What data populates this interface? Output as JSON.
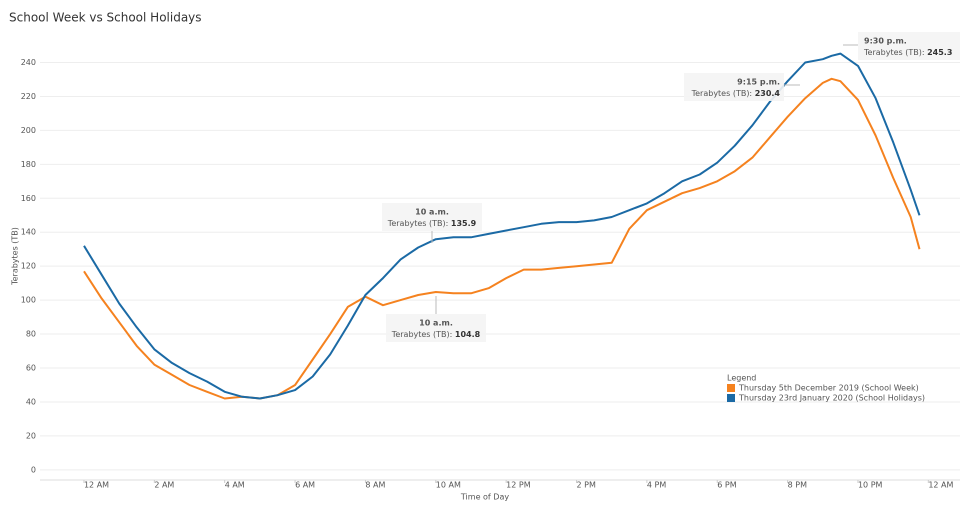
{
  "chart_data": {
    "type": "line",
    "title": "School Week vs School Holidays",
    "x_label": "Time of Day",
    "y_label": "Terabytes (TB)",
    "x": [
      0,
      0.5,
      1,
      1.5,
      2,
      2.5,
      3,
      3.5,
      4,
      4.5,
      5,
      5.5,
      6,
      6.5,
      7,
      7.5,
      8,
      8.5,
      9,
      9.5,
      10,
      10.5,
      11,
      11.5,
      12,
      12.5,
      13,
      13.5,
      14,
      14.5,
      15,
      15.5,
      16,
      16.5,
      17,
      17.5,
      18,
      18.5,
      19,
      19.5,
      20,
      20.5,
      21,
      21.25,
      21.5,
      22,
      22.5,
      23,
      23.5,
      23.75
    ],
    "series": [
      {
        "name": "Thursday 5th December 2019 (School Week)",
        "color": "#f5821f",
        "values": [
          117,
          101,
          87,
          73,
          62,
          56,
          50,
          46,
          42,
          43,
          42,
          44,
          50,
          65,
          80,
          96,
          102,
          97,
          100,
          103,
          104.8,
          104,
          104,
          107,
          113,
          118,
          118,
          119,
          120,
          121,
          122,
          142,
          153,
          158,
          163,
          166,
          170,
          176,
          184,
          196,
          208,
          219,
          228,
          230.4,
          229,
          218,
          197,
          172,
          149,
          130
        ]
      },
      {
        "name": "Thursday 23rd January 2020 (School Holidays)",
        "color": "#1b6aa5",
        "values": [
          132,
          115,
          98,
          84,
          71,
          63,
          57,
          52,
          46,
          43,
          42,
          44,
          47,
          55,
          68,
          85,
          103,
          113,
          124,
          131,
          135.9,
          137,
          137,
          139,
          141,
          143,
          145,
          146,
          146,
          147,
          149,
          153,
          157,
          163,
          170,
          174,
          181,
          191,
          203,
          217,
          229,
          240,
          242,
          244,
          245.3,
          238,
          219,
          193,
          165,
          150
        ]
      }
    ],
    "xlim": [
      -1.25,
      24.9
    ],
    "ylim": [
      -6,
      258
    ],
    "xticks": [
      {
        "value": 0,
        "label": "12 AM"
      },
      {
        "value": 2,
        "label": "2 AM"
      },
      {
        "value": 4,
        "label": "4 AM"
      },
      {
        "value": 6,
        "label": "6 AM"
      },
      {
        "value": 8,
        "label": "8 AM"
      },
      {
        "value": 10,
        "label": "10 AM"
      },
      {
        "value": 12,
        "label": "12 PM"
      },
      {
        "value": 14,
        "label": "2 PM"
      },
      {
        "value": 16,
        "label": "4 PM"
      },
      {
        "value": 18,
        "label": "6 PM"
      },
      {
        "value": 20,
        "label": "8 PM"
      },
      {
        "value": 22,
        "label": "10 PM"
      },
      {
        "value": 24,
        "label": "12 AM"
      }
    ],
    "yticks": [
      0,
      20,
      40,
      60,
      80,
      100,
      120,
      140,
      160,
      180,
      200,
      220,
      240
    ],
    "grid": true,
    "legend_title": "Legend",
    "legend_position": "right",
    "annotations": [
      {
        "time": "10 a.m.",
        "label": "Terabytes (TB):",
        "value": 135.9
      },
      {
        "time": "10 a.m.",
        "label": "Terabytes (TB):",
        "value": 104.8
      },
      {
        "time": "9:15 p.m.",
        "label": "Terabytes (TB):",
        "value": 230.4
      },
      {
        "time": "9:30 p.m.",
        "label": "Terabytes (TB):",
        "value": 245.3
      }
    ]
  }
}
